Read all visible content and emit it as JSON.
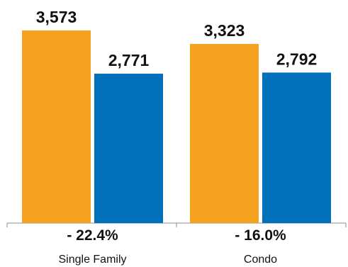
{
  "chart_data": {
    "type": "bar",
    "categories": [
      "Single Family",
      "Condo"
    ],
    "series": [
      {
        "values": [
          3573,
          3323
        ],
        "value_labels": [
          "3,573",
          "3,323"
        ],
        "color": "#F4A11F"
      },
      {
        "values": [
          2771,
          2792
        ],
        "value_labels": [
          "2,771",
          "2,792"
        ],
        "color": "#0070BB"
      }
    ],
    "change_labels": [
      "- 22.4%",
      "- 16.0%"
    ],
    "ylim": [
      0,
      3573
    ],
    "grid": false,
    "legend": "none"
  }
}
